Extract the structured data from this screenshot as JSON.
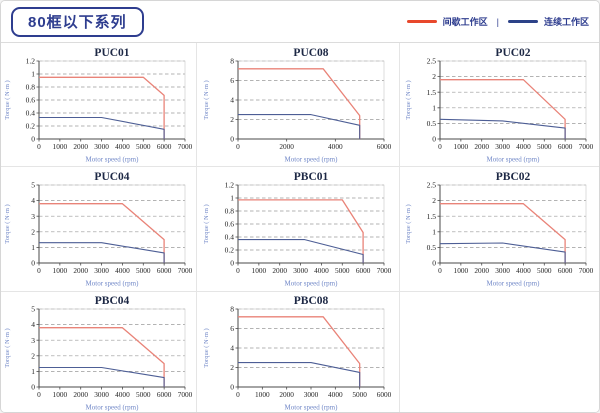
{
  "header": {
    "badge": "80框以下系列"
  },
  "legend": {
    "separator": "|",
    "items": [
      {
        "label": "间歇工作区",
        "color": "#e8482c"
      },
      {
        "label": "连续工作区",
        "color": "#2c4288"
      }
    ]
  },
  "grid_cells": [
    [
      "PUC01",
      "PUC08",
      "PUC02"
    ],
    [
      "PUC04",
      "PBC01",
      "PBC02"
    ],
    [
      "PBC04",
      "PBC08",
      ""
    ]
  ],
  "style": {
    "red_curve": "#e98378",
    "blue_curve": "#4d5e95",
    "grid_color": "#9a9a9a",
    "axis_color": "#4a4a4a",
    "tick_text": "#222222",
    "axis_label_color": "#7087c7",
    "title_color": "#1d2845"
  },
  "chart_data": [
    {
      "type": "line",
      "title": "PUC01",
      "xlabel": "Motor speed (rpm)",
      "ylabel": "Torque ( N·m )",
      "xlim": [
        0,
        7000
      ],
      "xtick_step": 1000,
      "ylim": [
        0,
        1.2
      ],
      "ytick_step": 0.2,
      "grid": true,
      "series": [
        {
          "name": "间歇工作区",
          "color": "#e98378",
          "points": [
            [
              0,
              0.95
            ],
            [
              5000,
              0.95
            ],
            [
              6000,
              0.67
            ],
            [
              6000,
              0
            ]
          ]
        },
        {
          "name": "连续工作区",
          "color": "#4d5e95",
          "points": [
            [
              0,
              0.33
            ],
            [
              3000,
              0.33
            ],
            [
              6000,
              0.15
            ],
            [
              6000,
              0
            ]
          ]
        }
      ]
    },
    {
      "type": "line",
      "title": "PUC08",
      "xlabel": "Motor speed (rpm)",
      "ylabel": "Torque ( N·m )",
      "xlim": [
        0,
        6000
      ],
      "xtick_step": 2000,
      "ylim": [
        0,
        8
      ],
      "ytick_step": 2,
      "grid": true,
      "series": [
        {
          "name": "间歇工作区",
          "color": "#e98378",
          "points": [
            [
              0,
              7.2
            ],
            [
              3500,
              7.2
            ],
            [
              5000,
              2.4
            ],
            [
              5000,
              0
            ]
          ]
        },
        {
          "name": "连续工作区",
          "color": "#4d5e95",
          "points": [
            [
              0,
              2.5
            ],
            [
              3000,
              2.5
            ],
            [
              5000,
              1.4
            ],
            [
              5000,
              0
            ]
          ]
        }
      ]
    },
    {
      "type": "line",
      "title": "PUC02",
      "xlabel": "Motor speed (rpm)",
      "ylabel": "Torque ( N·m )",
      "xlim": [
        0,
        7000
      ],
      "xtick_step": 1000,
      "ylim": [
        0,
        2.5
      ],
      "ytick_step": 0.5,
      "grid": true,
      "series": [
        {
          "name": "间歇工作区",
          "color": "#e98378",
          "points": [
            [
              0,
              1.9
            ],
            [
              4000,
              1.9
            ],
            [
              6000,
              0.63
            ],
            [
              6000,
              0
            ]
          ]
        },
        {
          "name": "连续工作区",
          "color": "#4d5e95",
          "points": [
            [
              0,
              0.63
            ],
            [
              3000,
              0.58
            ],
            [
              6000,
              0.35
            ],
            [
              6000,
              0
            ]
          ]
        }
      ]
    },
    {
      "type": "line",
      "title": "PUC04",
      "xlabel": "Motor speed (rpm)",
      "ylabel": "Torque ( N·m )",
      "xlim": [
        0,
        7000
      ],
      "xtick_step": 1000,
      "ylim": [
        0,
        5
      ],
      "ytick_step": 1,
      "grid": true,
      "series": [
        {
          "name": "间歇工作区",
          "color": "#e98378",
          "points": [
            [
              0,
              3.8
            ],
            [
              4000,
              3.8
            ],
            [
              6000,
              1.5
            ],
            [
              6000,
              0
            ]
          ]
        },
        {
          "name": "连续工作区",
          "color": "#4d5e95",
          "points": [
            [
              0,
              1.3
            ],
            [
              3000,
              1.3
            ],
            [
              6000,
              0.65
            ],
            [
              6000,
              0
            ]
          ]
        }
      ]
    },
    {
      "type": "line",
      "title": "PBC01",
      "xlabel": "Motor speed (rpm)",
      "ylabel": "Torque ( N·m )",
      "xlim": [
        0,
        7000
      ],
      "xtick_step": 1000,
      "ylim": [
        0,
        1.2
      ],
      "ytick_step": 0.2,
      "grid": true,
      "series": [
        {
          "name": "间歇工作区",
          "color": "#e98378",
          "points": [
            [
              0,
              0.97
            ],
            [
              5000,
              0.97
            ],
            [
              6000,
              0.47
            ],
            [
              6000,
              0
            ]
          ]
        },
        {
          "name": "连续工作区",
          "color": "#4d5e95",
          "points": [
            [
              0,
              0.36
            ],
            [
              3200,
              0.36
            ],
            [
              6000,
              0.13
            ],
            [
              6000,
              0
            ]
          ]
        }
      ]
    },
    {
      "type": "line",
      "title": "PBC02",
      "xlabel": "Motor speed (rpm)",
      "ylabel": "Torque ( N·m )",
      "xlim": [
        0,
        7000
      ],
      "xtick_step": 1000,
      "ylim": [
        0,
        2.5
      ],
      "ytick_step": 0.5,
      "grid": true,
      "series": [
        {
          "name": "间歇工作区",
          "color": "#e98378",
          "points": [
            [
              0,
              1.9
            ],
            [
              4000,
              1.9
            ],
            [
              6000,
              0.75
            ],
            [
              6000,
              0
            ]
          ]
        },
        {
          "name": "连续工作区",
          "color": "#4d5e95",
          "points": [
            [
              0,
              0.62
            ],
            [
              3000,
              0.64
            ],
            [
              6000,
              0.35
            ],
            [
              6000,
              0
            ]
          ]
        }
      ]
    },
    {
      "type": "line",
      "title": "PBC04",
      "xlabel": "Motor speed (rpm)",
      "ylabel": "Torque ( N·m )",
      "xlim": [
        0,
        7000
      ],
      "xtick_step": 1000,
      "ylim": [
        0,
        5
      ],
      "ytick_step": 1,
      "grid": true,
      "series": [
        {
          "name": "间歇工作区",
          "color": "#e98378",
          "points": [
            [
              0,
              3.8
            ],
            [
              4000,
              3.8
            ],
            [
              6000,
              1.5
            ],
            [
              6000,
              0
            ]
          ]
        },
        {
          "name": "连续工作区",
          "color": "#4d5e95",
          "points": [
            [
              0,
              1.25
            ],
            [
              3000,
              1.25
            ],
            [
              6000,
              0.6
            ],
            [
              6000,
              0
            ]
          ]
        }
      ]
    },
    {
      "type": "line",
      "title": "PBC08",
      "xlabel": "Motor speed (rpm)",
      "ylabel": "Torque ( N·m )",
      "xlim": [
        0,
        6000
      ],
      "xtick_step": 1000,
      "ylim": [
        0,
        8
      ],
      "ytick_step": 2,
      "grid": true,
      "series": [
        {
          "name": "间歇工作区",
          "color": "#e98378",
          "points": [
            [
              0,
              7.2
            ],
            [
              3500,
              7.2
            ],
            [
              5000,
              2.4
            ],
            [
              5000,
              0
            ]
          ]
        },
        {
          "name": "连续工作区",
          "color": "#4d5e95",
          "points": [
            [
              0,
              2.5
            ],
            [
              3000,
              2.5
            ],
            [
              5000,
              1.5
            ],
            [
              5000,
              0
            ]
          ]
        }
      ]
    }
  ]
}
